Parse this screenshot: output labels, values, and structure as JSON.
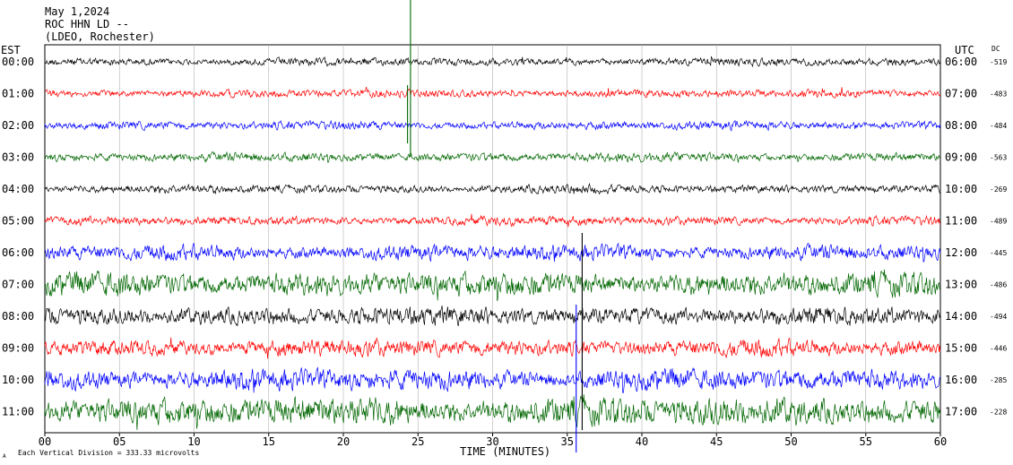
{
  "header": {
    "date": "May 1,2024",
    "station": "ROC HHN LD --",
    "network": "(LDEO, Rochester)"
  },
  "labels": {
    "left_tz": "EST",
    "right_tz": "UTC",
    "dc": "DC"
  },
  "footer": {
    "scale_note": "Each Vertical Division = 333.33 microvolts",
    "corner_mark": "A"
  },
  "chart_data": {
    "type": "line",
    "title": "",
    "xlabel": "TIME (MINUTES)",
    "ylabel": "",
    "xlim": [
      0,
      60
    ],
    "x_ticks": [
      "00",
      "05",
      "10",
      "15",
      "20",
      "25",
      "30",
      "35",
      "40",
      "45",
      "50",
      "55",
      "60"
    ],
    "x_tick_values": [
      0,
      5,
      10,
      15,
      20,
      25,
      30,
      35,
      40,
      45,
      50,
      55,
      60
    ],
    "trace_colors": [
      "#000000",
      "#ff0000",
      "#0000ff",
      "#006600"
    ],
    "grid": true,
    "rows": [
      {
        "est": "00:00",
        "utc": "06:00",
        "dc": "-519",
        "amp": 0.28
      },
      {
        "est": "01:00",
        "utc": "07:00",
        "dc": "-483",
        "amp": 0.28
      },
      {
        "est": "02:00",
        "utc": "08:00",
        "dc": "-484",
        "amp": 0.3
      },
      {
        "est": "03:00",
        "utc": "09:00",
        "dc": "-563",
        "amp": 0.32
      },
      {
        "est": "04:00",
        "utc": "10:00",
        "dc": "-269",
        "amp": 0.3
      },
      {
        "est": "05:00",
        "utc": "11:00",
        "dc": "-489",
        "amp": 0.32
      },
      {
        "est": "06:00",
        "utc": "12:00",
        "dc": "-445",
        "amp": 0.55
      },
      {
        "est": "07:00",
        "utc": "13:00",
        "dc": "-486",
        "amp": 0.85
      },
      {
        "est": "08:00",
        "utc": "14:00",
        "dc": "-494",
        "amp": 0.65
      },
      {
        "est": "09:00",
        "utc": "15:00",
        "dc": "-446",
        "amp": 0.6
      },
      {
        "est": "10:00",
        "utc": "16:00",
        "dc": "-285",
        "amp": 0.75
      },
      {
        "est": "11:00",
        "utc": "17:00",
        "dc": "-228",
        "amp": 1.0
      }
    ]
  }
}
